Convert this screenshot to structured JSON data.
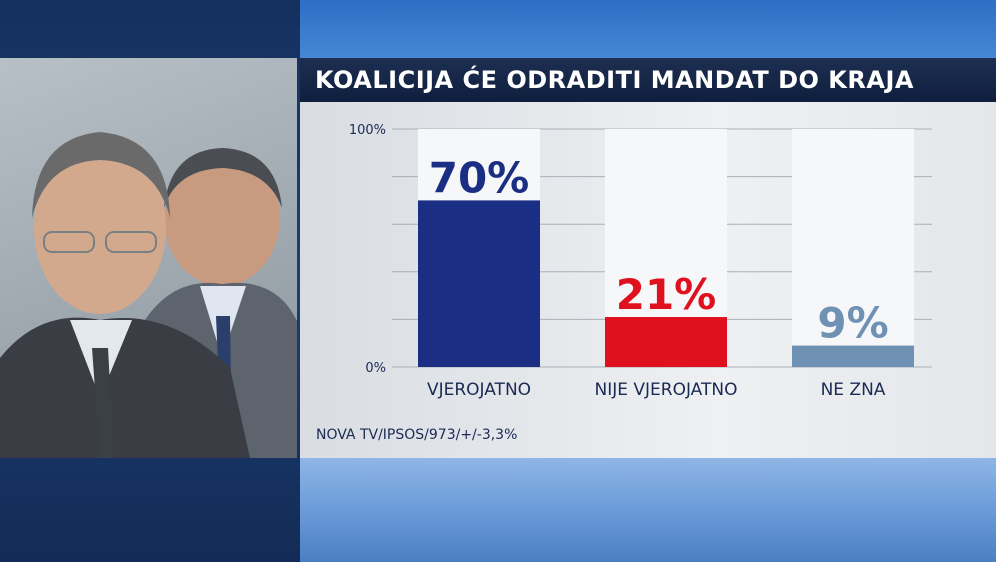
{
  "chart_data": {
    "type": "bar",
    "title": "KOALICIJA ĆE ODRADITI MANDAT DO KRAJA",
    "categories": [
      "VJEROJATNO",
      "NIJE VJEROJATNO",
      "NE ZNA"
    ],
    "values": [
      70,
      21,
      9
    ],
    "value_labels": [
      "70%",
      "21%",
      "9%"
    ],
    "colors": [
      "#1a2f84",
      "#e0111f",
      "#6f92b4"
    ],
    "ytick_labels": [
      "100%",
      "0%"
    ],
    "ylim": [
      0,
      100
    ],
    "grid": true
  },
  "source": "NOVA TV/IPSOS/973/+/-3,3%"
}
